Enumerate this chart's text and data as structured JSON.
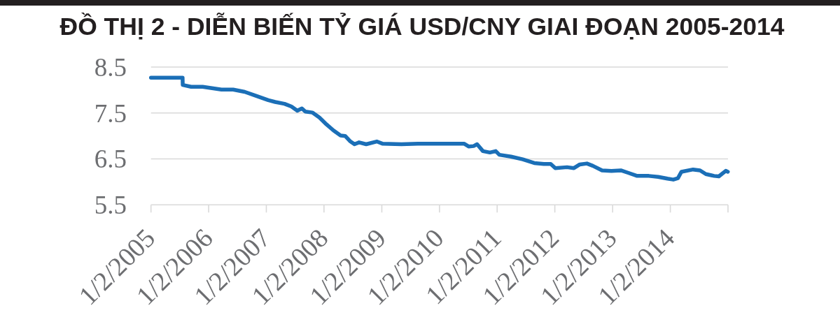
{
  "chart_data": {
    "type": "line",
    "title": "ĐỒ THỊ 2 - DIỄN BIẾN TỶ GIÁ USD/CNY GIAI ĐOẠN 2005-2014",
    "x": [
      "2005-01-02",
      "2005-07-21",
      "2005-07-22",
      "2005-09-13",
      "2005-11-25",
      "2006-03-24",
      "2006-06-06",
      "2006-08-18",
      "2006-10-31",
      "2007-01-14",
      "2007-02-27",
      "2007-04-27",
      "2007-06-10",
      "2007-07-17",
      "2007-08-15",
      "2007-09-06",
      "2007-10-20",
      "2007-12-04",
      "2008-01-18",
      "2008-03-02",
      "2008-04-16",
      "2008-05-15",
      "2008-06-14",
      "2008-07-13",
      "2008-08-11",
      "2008-09-25",
      "2008-12-01",
      "2009-01-08",
      "2009-05-06",
      "2009-08-18",
      "2010-06-08",
      "2010-07-07",
      "2010-08-06",
      "2010-08-28",
      "2010-10-04",
      "2010-11-17",
      "2010-12-24",
      "2011-01-16",
      "2011-03-31",
      "2011-06-13",
      "2011-08-25",
      "2011-10-24",
      "2011-12-07",
      "2012-01-05",
      "2012-03-19",
      "2012-05-02",
      "2012-06-08",
      "2012-07-23",
      "2012-08-29",
      "2012-10-27",
      "2012-12-25",
      "2013-02-23",
      "2013-04-08",
      "2013-06-06",
      "2013-08-19",
      "2013-10-17",
      "2013-12-15",
      "2014-01-21",
      "2014-02-19",
      "2014-03-13",
      "2014-05-26",
      "2014-07-09",
      "2014-08-15",
      "2014-10-06",
      "2014-11-05",
      "2014-12-19",
      "2015-01-01"
    ],
    "series": [
      {
        "color": "#1b6fb7",
        "values": [
          8.27,
          8.27,
          8.11,
          8.07,
          8.07,
          8.01,
          8.01,
          7.96,
          7.87,
          7.78,
          7.74,
          7.7,
          7.64,
          7.55,
          7.6,
          7.53,
          7.51,
          7.4,
          7.25,
          7.12,
          7.01,
          7.0,
          6.89,
          6.82,
          6.86,
          6.82,
          6.88,
          6.83,
          6.82,
          6.83,
          6.83,
          6.77,
          6.78,
          6.82,
          6.67,
          6.64,
          6.67,
          6.59,
          6.55,
          6.49,
          6.41,
          6.39,
          6.39,
          6.3,
          6.32,
          6.3,
          6.38,
          6.4,
          6.35,
          6.25,
          6.24,
          6.25,
          6.2,
          6.13,
          6.13,
          6.11,
          6.07,
          6.05,
          6.08,
          6.22,
          6.27,
          6.25,
          6.17,
          6.13,
          6.12,
          6.24,
          6.22
        ]
      }
    ],
    "xlim": [
      "2005-01-02",
      "2015-01-02"
    ],
    "xticks": [
      {
        "value": "2005-01-02",
        "label": "1/2/2005"
      },
      {
        "value": "2006-01-02",
        "label": "1/2/2006"
      },
      {
        "value": "2007-01-02",
        "label": "1/2/2007"
      },
      {
        "value": "2008-01-02",
        "label": "1/2/2008"
      },
      {
        "value": "2009-01-02",
        "label": "1/2/2009"
      },
      {
        "value": "2010-01-02",
        "label": "1/2/2010"
      },
      {
        "value": "2011-01-02",
        "label": "1/2/2011"
      },
      {
        "value": "2012-01-02",
        "label": "1/2/2012"
      },
      {
        "value": "2013-01-02",
        "label": "1/2/2013"
      },
      {
        "value": "2014-01-02",
        "label": "1/2/2014"
      },
      {
        "value": "2015-01-02",
        "label": null
      }
    ],
    "ylim": [
      5.5,
      8.5
    ],
    "yticks": [
      5.5,
      6.5,
      7.5,
      8.5
    ],
    "grid": "y",
    "line_style": "solid"
  }
}
